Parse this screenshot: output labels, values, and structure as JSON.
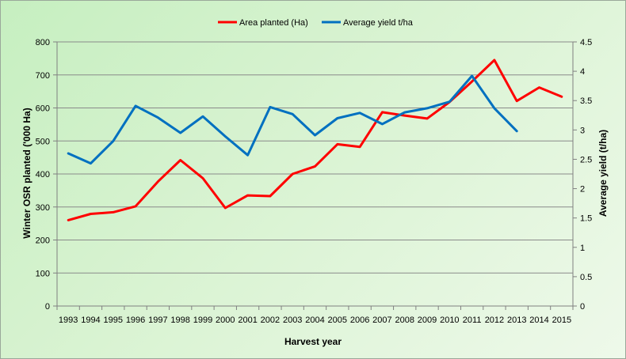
{
  "chart_data": {
    "type": "line",
    "title": "",
    "xlabel": "Harvest year",
    "ylabel": "Winter OSR planted ('000 Ha)",
    "y2label": "Average yield (t/ha)",
    "ylim": [
      0,
      800
    ],
    "y2lim": [
      0,
      4.5
    ],
    "yticks": [
      "0",
      "100",
      "200",
      "300",
      "400",
      "500",
      "600",
      "700",
      "800"
    ],
    "y2ticks": [
      "0",
      "0.5",
      "1",
      "1.5",
      "2",
      "2.5",
      "3",
      "3.5",
      "4",
      "4.5"
    ],
    "categories": [
      "1993",
      "1994",
      "1995",
      "1996",
      "1997",
      "1998",
      "1999",
      "2000",
      "2001",
      "2002",
      "2003",
      "2004",
      "2005",
      "2006",
      "2007",
      "2008",
      "2009",
      "2010",
      "2011",
      "2012",
      "2013",
      "2014",
      "2015"
    ],
    "legend_position": "top",
    "grid": true,
    "series": [
      {
        "name": "Area planted (Ha)",
        "axis": "left",
        "color": "#ff0000",
        "values": [
          260,
          279,
          284,
          302,
          377,
          442,
          387,
          297,
          335,
          333,
          400,
          423,
          490,
          482,
          587,
          577,
          568,
          618,
          680,
          745,
          621,
          662,
          634
        ]
      },
      {
        "name": "Average yield t/ha",
        "axis": "right",
        "color": "#0070c0",
        "values": [
          2.6,
          2.43,
          2.81,
          3.41,
          3.21,
          2.95,
          3.23,
          2.89,
          2.57,
          3.39,
          3.27,
          2.91,
          3.2,
          3.29,
          3.1,
          3.3,
          3.37,
          3.48,
          3.92,
          3.37,
          2.98,
          null,
          null
        ]
      }
    ]
  }
}
